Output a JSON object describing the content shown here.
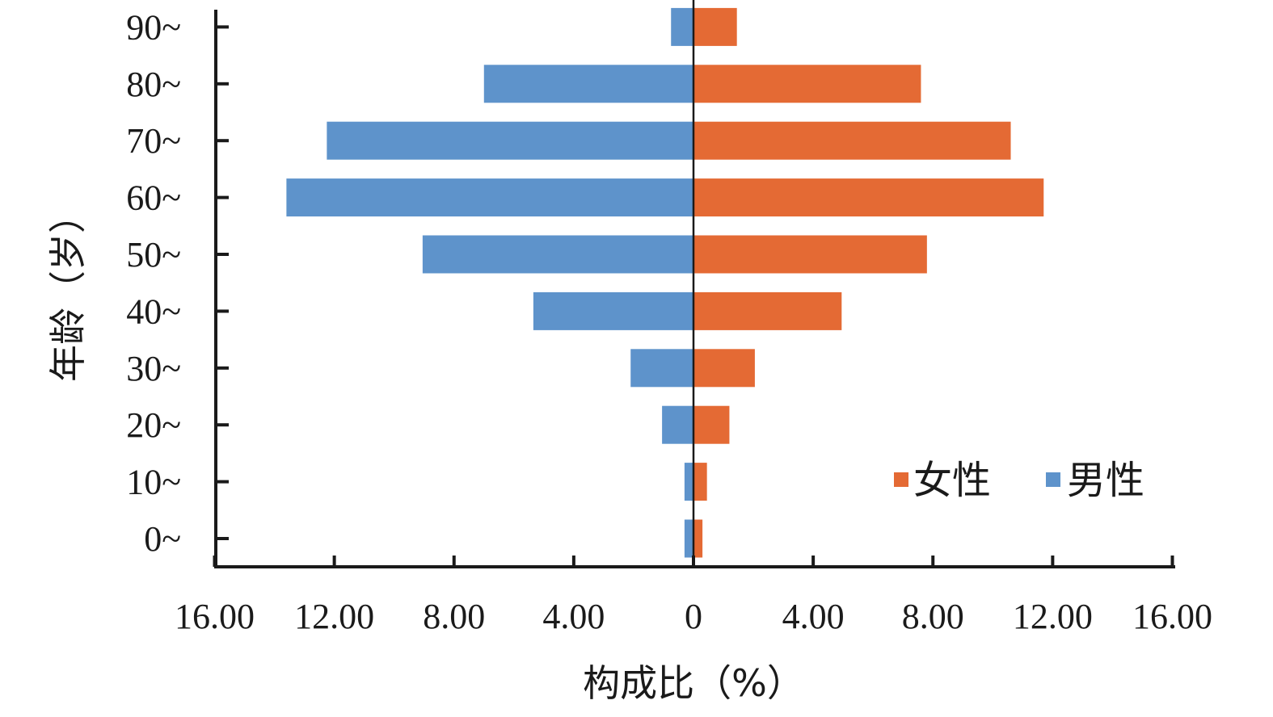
{
  "chart_data": {
    "type": "bar",
    "orientation": "horizontal",
    "layout": "population-pyramid",
    "categories": [
      "0~",
      "10~",
      "20~",
      "30~",
      "40~",
      "50~",
      "60~",
      "70~",
      "80~",
      "90~"
    ],
    "series": [
      {
        "name": "女性",
        "color": "#E46A34",
        "side": "right",
        "values": [
          0.3,
          0.45,
          1.2,
          2.05,
          4.95,
          7.8,
          11.7,
          10.6,
          7.6,
          1.45
        ]
      },
      {
        "name": "男性",
        "color": "#5E93CB",
        "side": "left",
        "values": [
          0.3,
          0.3,
          1.05,
          2.1,
          5.35,
          9.05,
          13.6,
          12.25,
          7.0,
          0.75
        ]
      }
    ],
    "xlabel": "构成比（%）",
    "ylabel": "年龄（岁）",
    "xlim": [
      -16,
      16
    ],
    "xticks": [
      -16,
      -12,
      -8,
      -4,
      0,
      4,
      8,
      12,
      16
    ],
    "xtick_labels": [
      "16.00",
      "12.00",
      "8.00",
      "4.00",
      "0",
      "4.00",
      "8.00",
      "12.00",
      "16.00"
    ],
    "legend_position": "bottom-right",
    "grid": false
  }
}
